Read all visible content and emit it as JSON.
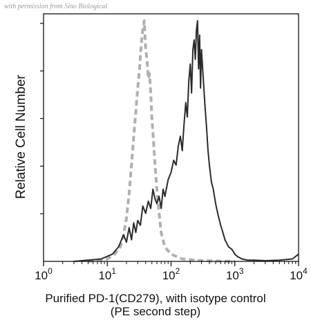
{
  "watermark": "with permission from Sino Biological",
  "chart_data": {
    "type": "line",
    "title": "",
    "xlabel_lines": [
      "Purified PD-1(CD279), with isotype control",
      "(PE second step)"
    ],
    "ylabel": "Relative Cell Number",
    "x_scale": "log",
    "xlim": [
      1,
      10000
    ],
    "ylim": [
      0,
      100
    ],
    "x_ticks": [
      {
        "base": "10",
        "exp": "0"
      },
      {
        "base": "10",
        "exp": "1"
      },
      {
        "base": "10",
        "exp": "2"
      },
      {
        "base": "10",
        "exp": "3"
      },
      {
        "base": "10",
        "exp": "4"
      }
    ],
    "grid": false,
    "legend": "none",
    "series": [
      {
        "color": "#b0b0b0",
        "dash": true,
        "x": [
          5,
          10,
          13,
          16,
          18,
          20,
          22,
          24,
          26,
          28,
          30,
          32,
          34,
          36,
          38,
          40,
          42,
          44,
          46,
          48,
          50,
          53,
          56,
          60,
          65,
          70,
          80,
          100,
          150,
          300,
          1000
        ],
        "y": [
          0,
          1,
          3,
          6,
          11,
          18,
          28,
          40,
          52,
          62,
          72,
          80,
          90,
          96,
          100,
          88,
          84,
          76,
          78,
          70,
          60,
          50,
          40,
          30,
          20,
          12,
          6,
          3,
          1,
          0.3,
          0
        ]
      },
      {
        "color": "#2a2a2a",
        "dash": false,
        "x": [
          3,
          8,
          12,
          15,
          18,
          20,
          22,
          24,
          26,
          28,
          30,
          33,
          36,
          40,
          44,
          48,
          52,
          56,
          60,
          65,
          70,
          75,
          80,
          90,
          100,
          110,
          120,
          130,
          140,
          150,
          160,
          170,
          180,
          190,
          200,
          210,
          220,
          230,
          240,
          250,
          260,
          270,
          280,
          290,
          300,
          320,
          340,
          360,
          380,
          400,
          430,
          460,
          500,
          550,
          600,
          650,
          700,
          800,
          900,
          1000,
          1100,
          1300,
          1600,
          2000,
          3000,
          5000,
          8000,
          10000
        ],
        "y": [
          0,
          1,
          3,
          6,
          11,
          8,
          14,
          9,
          16,
          12,
          17,
          15,
          23,
          20,
          25,
          22,
          30,
          26,
          24,
          27,
          22,
          30,
          27,
          34,
          37,
          42,
          40,
          48,
          52,
          46,
          57,
          66,
          60,
          75,
          82,
          70,
          88,
          92,
          84,
          96,
          100,
          80,
          94,
          72,
          88,
          76,
          65,
          56,
          46,
          40,
          33,
          30,
          24,
          19,
          15,
          12,
          9,
          6,
          5,
          3,
          2,
          1,
          0.5,
          0.5,
          0.3,
          0.5,
          1,
          3
        ]
      }
    ]
  }
}
